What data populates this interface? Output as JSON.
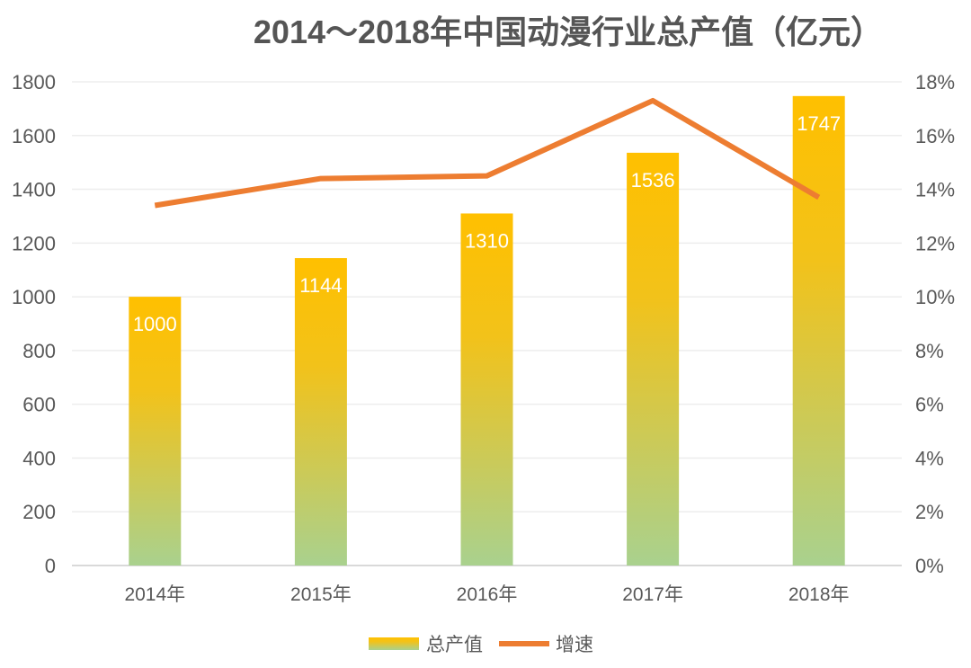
{
  "chart_data": {
    "type": "bar",
    "title": "2014～2018年中国动漫行业总产值（亿元）",
    "categories": [
      "2014年",
      "2015年",
      "2016年",
      "2017年",
      "2018年"
    ],
    "series": [
      {
        "name": "总产值",
        "type": "bar",
        "axis": "left",
        "values": [
          1000,
          1144,
          1310,
          1536,
          1747
        ],
        "labels": [
          "1000",
          "1144",
          "1310",
          "1536",
          "1747"
        ]
      },
      {
        "name": "增速",
        "type": "line",
        "axis": "right",
        "values": [
          13.4,
          14.4,
          14.5,
          17.3,
          13.7
        ]
      }
    ],
    "left_axis": {
      "min": 0,
      "max": 1800,
      "ticks": [
        "0",
        "200",
        "400",
        "600",
        "800",
        "1000",
        "1200",
        "1400",
        "1600",
        "1800"
      ]
    },
    "right_axis": {
      "min": 0,
      "max": 18,
      "ticks": [
        "0%",
        "2%",
        "4%",
        "6%",
        "8%",
        "10%",
        "12%",
        "14%",
        "16%",
        "18%"
      ]
    },
    "grid": true,
    "legend": "bottom",
    "colors": {
      "bar_top": "#FFC000",
      "bar_bottom": "#A9D18E",
      "line": "#ED7D31",
      "text": "#595959",
      "grid": "#EDEDED"
    }
  }
}
